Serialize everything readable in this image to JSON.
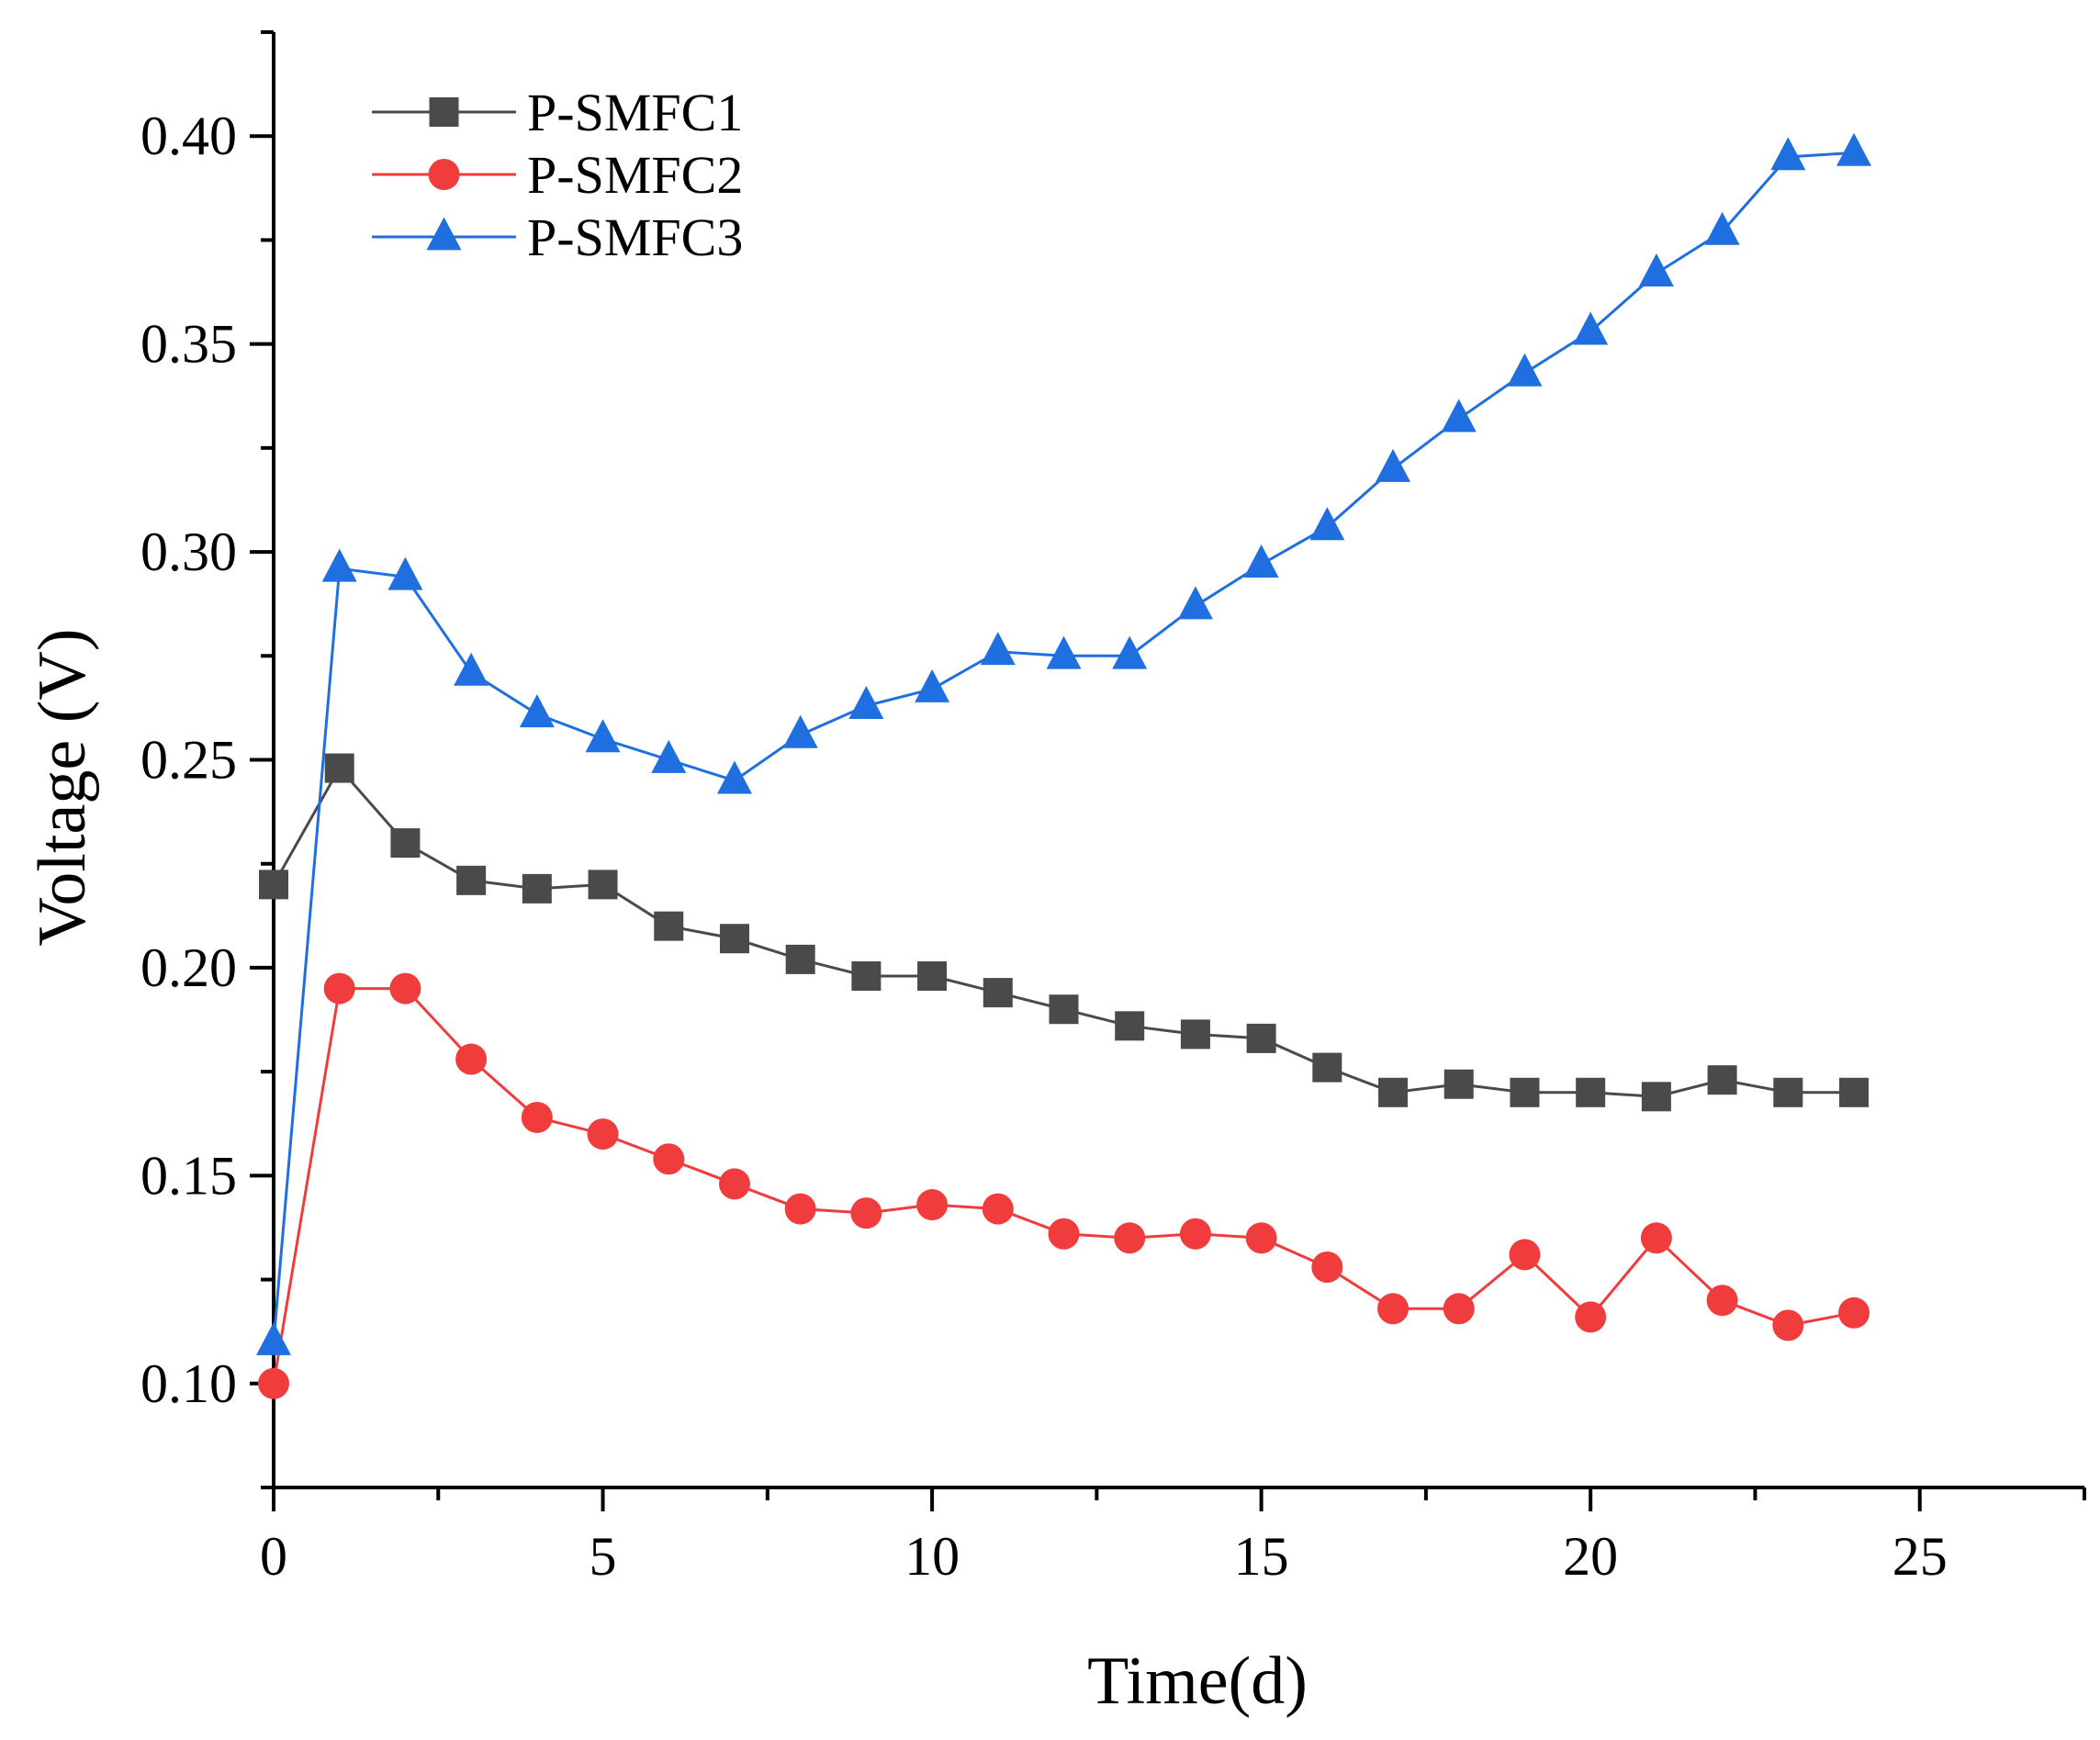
{
  "chart_data": {
    "type": "line",
    "title": "",
    "xlabel": "Time(d)",
    "ylabel": "Voltage (V)",
    "xlim": [
      0,
      27.5
    ],
    "ylim": [
      0.075,
      0.425
    ],
    "xticks": [
      0,
      5,
      10,
      15,
      20,
      25
    ],
    "xtick_labels": [
      "0",
      "5",
      "10",
      "15",
      "20",
      "25"
    ],
    "yticks": [
      0.1,
      0.15,
      0.2,
      0.25,
      0.3,
      0.35,
      0.4
    ],
    "ytick_labels": [
      "0.10",
      "0.15",
      "0.20",
      "0.25",
      "0.30",
      "0.35",
      "0.40"
    ],
    "grid": false,
    "legend_position": "top-left",
    "x": [
      0,
      1,
      2,
      3,
      4,
      5,
      6,
      7,
      8,
      9,
      10,
      11,
      12,
      13,
      14,
      15,
      16,
      17,
      18,
      19,
      20,
      21,
      22,
      23,
      24
    ],
    "series": [
      {
        "name": "P-SMFC1",
        "color": "#4a4a4a",
        "marker": "square",
        "values": [
          0.22,
          0.248,
          0.23,
          0.221,
          0.219,
          0.22,
          0.21,
          0.207,
          0.202,
          0.198,
          0.198,
          0.194,
          0.19,
          0.186,
          0.184,
          0.183,
          0.176,
          0.17,
          0.172,
          0.17,
          0.17,
          0.169,
          0.173,
          0.17,
          0.17
        ]
      },
      {
        "name": "P-SMFC2",
        "color": "#f03c3c",
        "marker": "circle",
        "values": [
          0.1,
          0.195,
          0.195,
          0.178,
          0.164,
          0.16,
          0.154,
          0.148,
          0.142,
          0.141,
          0.143,
          0.142,
          0.136,
          0.135,
          0.136,
          0.135,
          0.128,
          0.118,
          0.118,
          0.131,
          0.116,
          0.135,
          0.12,
          0.114,
          0.117
        ]
      },
      {
        "name": "P-SMFC3",
        "color": "#1f6fe0",
        "marker": "triangle",
        "values": [
          0.11,
          0.296,
          0.294,
          0.271,
          0.261,
          0.255,
          0.25,
          0.245,
          0.256,
          0.263,
          0.267,
          0.276,
          0.275,
          0.275,
          0.287,
          0.297,
          0.306,
          0.32,
          0.332,
          0.343,
          0.353,
          0.367,
          0.377,
          0.395,
          0.396
        ]
      }
    ]
  }
}
